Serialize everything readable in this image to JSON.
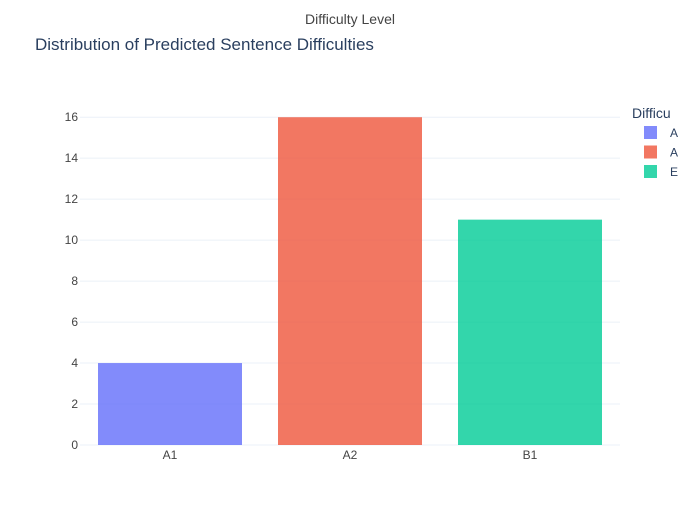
{
  "chart_data": {
    "type": "bar",
    "title": "Distribution of Predicted Sentence Difficulties",
    "top_caption": "Difficulty Level",
    "xlabel": "",
    "ylabel": "",
    "categories": [
      "A1",
      "A2",
      "B1"
    ],
    "values": [
      4,
      16,
      11
    ],
    "colors": [
      "#636efa",
      "#ef553b",
      "#00cc96"
    ],
    "bar_opacity": 0.8,
    "ylim": [
      0,
      16.84
    ],
    "yticks": [
      0,
      2,
      4,
      6,
      8,
      10,
      12,
      14,
      16
    ],
    "grid": true,
    "legend": {
      "title": "Difficu",
      "placement": "right",
      "labels": [
        "A",
        "A",
        "E"
      ]
    }
  }
}
